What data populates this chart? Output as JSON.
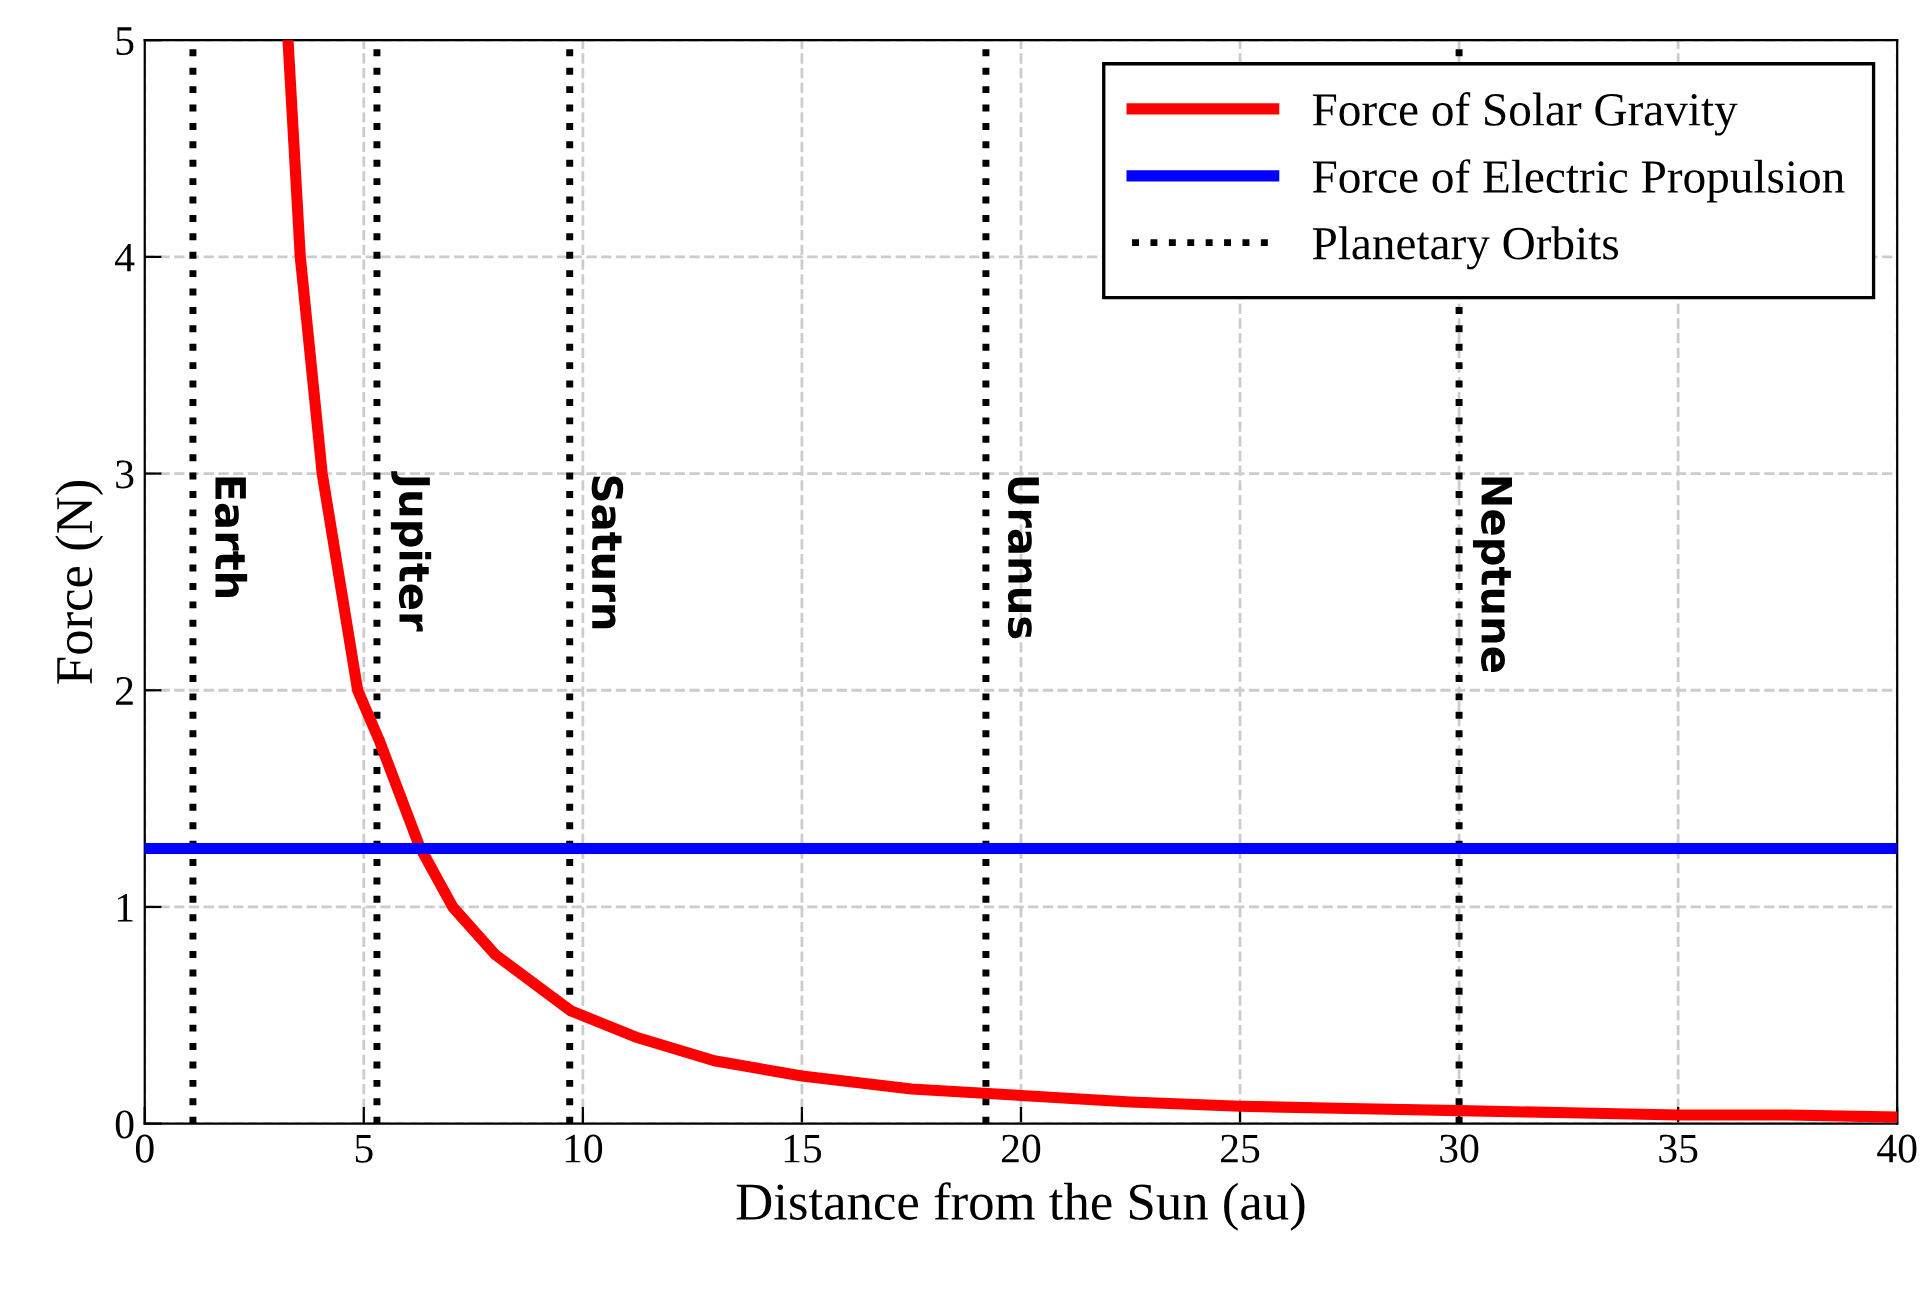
{
  "chart_data": {
    "type": "line",
    "xlabel": "Distance from the Sun (au)",
    "ylabel": "Force (N)",
    "xlim": [
      0,
      40
    ],
    "ylim": [
      0,
      5
    ],
    "xticks": [
      0,
      5,
      10,
      15,
      20,
      25,
      30,
      35,
      40
    ],
    "yticks": [
      0,
      1,
      2,
      3,
      4,
      5
    ],
    "grid": true,
    "legend": "top right",
    "line_style": "solid",
    "series": [
      {
        "name": "Force of Solar Gravity",
        "color": "#ff0000",
        "x": [
          3.27,
          3.55,
          4.05,
          4.86,
          5.35,
          6.27,
          7.03,
          8,
          9.73,
          11.2,
          13,
          15,
          17.5,
          20,
          22.5,
          25,
          27.5,
          30,
          32.5,
          35,
          37.5,
          40
        ],
        "values": [
          5,
          4,
          3,
          2,
          1.77,
          1.28,
          1,
          0.78,
          0.52,
          0.4,
          0.29,
          0.22,
          0.16,
          0.13,
          0.1,
          0.08,
          0.07,
          0.06,
          0.05,
          0.04,
          0.04,
          0.03
        ]
      },
      {
        "name": "Force of Electric Propulsion",
        "color": "#0000ff",
        "x": [
          0,
          40
        ],
        "values": [
          1.27,
          1.27
        ]
      },
      {
        "name": "Planetary Orbits",
        "color": "#000000",
        "line_style": "dotted"
      }
    ],
    "ref_lines": [
      {
        "axis": "x",
        "value": 1.1,
        "label": "Earth",
        "color": "#000000",
        "line_style": "dotted"
      },
      {
        "axis": "x",
        "value": 5.3,
        "label": "Jupiter",
        "color": "#000000",
        "line_style": "dotted"
      },
      {
        "axis": "x",
        "value": 9.7,
        "label": "Saturn",
        "color": "#000000",
        "line_style": "dotted"
      },
      {
        "axis": "x",
        "value": 19.2,
        "label": "Uranus",
        "color": "#000000",
        "line_style": "dotted"
      },
      {
        "axis": "x",
        "value": 30,
        "label": "Neptune",
        "color": "#000000",
        "line_style": "dotted"
      }
    ]
  }
}
